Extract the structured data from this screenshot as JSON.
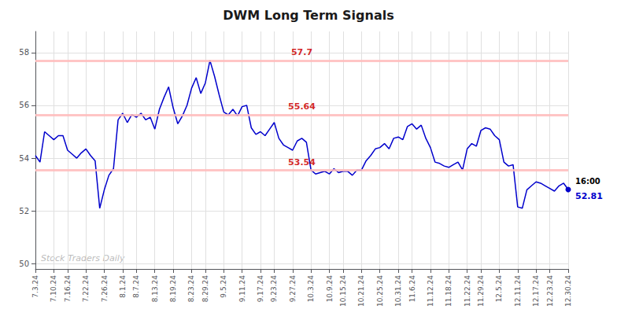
{
  "chart_data": {
    "type": "line",
    "title": "DWM Long Term Signals",
    "color": "#0000cc",
    "grid": true,
    "categories": [
      "7.3.24",
      null,
      null,
      null,
      "7.10.24",
      null,
      null,
      "7.16.24",
      null,
      null,
      null,
      "7.22.24",
      null,
      null,
      null,
      "7.26.24",
      null,
      null,
      null,
      "8.1.24",
      null,
      null,
      "8.7.24",
      null,
      null,
      null,
      "8.13.24",
      null,
      null,
      null,
      "8.19.24",
      null,
      null,
      null,
      "8.23.24",
      null,
      null,
      "8.29.24",
      null,
      null,
      null,
      "9.5.24",
      null,
      null,
      null,
      "9.11.24",
      null,
      null,
      null,
      "9.17.24",
      null,
      null,
      "9.23.24",
      null,
      null,
      null,
      "9.27.24",
      null,
      null,
      null,
      "10.3.24",
      null,
      null,
      null,
      "10.9.24",
      null,
      null,
      "10.15.24",
      null,
      null,
      null,
      "10.21.24",
      null,
      null,
      null,
      "10.25.24",
      null,
      null,
      null,
      "10.31.24",
      null,
      null,
      "11.6.24",
      null,
      null,
      null,
      "11.12.24",
      null,
      null,
      null,
      "11.18.24",
      null,
      null,
      null,
      "11.22.24",
      null,
      null,
      "11.29.24",
      null,
      null,
      null,
      "12.5.24",
      null,
      null,
      null,
      "12.11.24",
      null,
      null,
      null,
      "12.17.24",
      null,
      null,
      "12.23.24",
      null,
      null,
      null,
      "12.30.24"
    ],
    "values": [
      54.1,
      53.85,
      55.0,
      54.85,
      54.7,
      54.85,
      54.85,
      54.3,
      54.15,
      54.0,
      54.2,
      54.35,
      54.1,
      53.9,
      52.1,
      52.8,
      53.35,
      53.6,
      55.45,
      55.7,
      55.35,
      55.65,
      55.55,
      55.7,
      55.45,
      55.55,
      55.1,
      55.85,
      56.3,
      56.7,
      55.9,
      55.3,
      55.6,
      56.0,
      56.65,
      57.05,
      56.45,
      56.85,
      57.7,
      57.1,
      56.4,
      55.75,
      55.64,
      55.85,
      55.6,
      55.95,
      56.0,
      55.15,
      54.9,
      55.0,
      54.85,
      55.1,
      55.35,
      54.75,
      54.5,
      54.4,
      54.3,
      54.65,
      54.75,
      54.6,
      53.55,
      53.4,
      53.45,
      53.5,
      53.4,
      53.6,
      53.45,
      53.5,
      53.5,
      53.35,
      53.55,
      53.55,
      53.9,
      54.1,
      54.35,
      54.4,
      54.55,
      54.35,
      54.75,
      54.8,
      54.7,
      55.2,
      55.3,
      55.1,
      55.25,
      54.75,
      54.4,
      53.85,
      53.8,
      53.7,
      53.65,
      53.75,
      53.85,
      53.55,
      54.35,
      54.55,
      54.45,
      55.05,
      55.15,
      55.1,
      54.85,
      54.7,
      53.85,
      53.7,
      53.75,
      52.15,
      52.1,
      52.8,
      52.95,
      53.1,
      53.05,
      52.95,
      52.85,
      52.75,
      52.95,
      53.05,
      52.81
    ],
    "ylim": [
      49.8,
      58.8
    ],
    "yticks": [
      50,
      52,
      54,
      56,
      58
    ],
    "hlines": [
      {
        "value": 57.7,
        "label": "57.7",
        "color": "#ffbbbb",
        "label_color": "#cc0000"
      },
      {
        "value": 55.64,
        "label": "55.64",
        "color": "#ffbbbb",
        "label_color": "#cc0000"
      },
      {
        "value": 53.54,
        "label": "53.54",
        "color": "#ffbbbb",
        "label_color": "#cc0000"
      }
    ],
    "annotations": [
      {
        "text": "16:00",
        "color": "#000000"
      },
      {
        "text": "52.81",
        "color": "#0000cc"
      }
    ],
    "watermark": "Stock Traders Daily"
  }
}
